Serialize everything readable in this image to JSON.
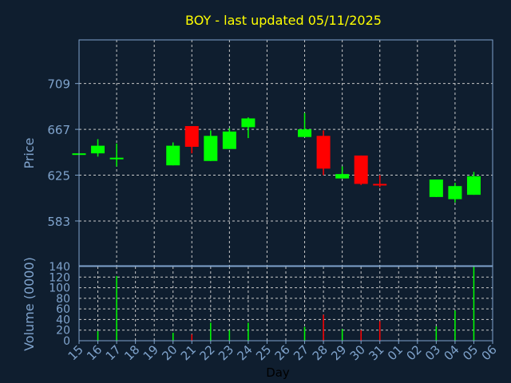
{
  "chart_data": [
    {
      "type": "candlestick",
      "title": "BOY - last updated 05/11/2025",
      "ylabel": "Price",
      "xlabel": "Day",
      "ylim": [
        542,
        749
      ],
      "y_ticks": [
        583,
        625,
        667,
        709
      ],
      "x_tick_labels": [
        "15",
        "16",
        "17",
        "18",
        "19",
        "20",
        "21",
        "22",
        "23",
        "24",
        "25",
        "26",
        "27",
        "28",
        "29",
        "30",
        "31",
        "01",
        "02",
        "03",
        "04",
        "05",
        "06"
      ],
      "grid": true,
      "colors": {
        "up": "#00ff00",
        "down": "#ff0000",
        "title": "#ffff00",
        "axis": "#7fa3cc",
        "background": "#0f1e2f"
      },
      "candles": [
        {
          "day": "15",
          "open": 645,
          "close": 645,
          "high": 645,
          "low": 645
        },
        {
          "day": "16",
          "open": 645,
          "close": 652,
          "high": 658,
          "low": 642
        },
        {
          "day": "17",
          "open": 641,
          "close": 641,
          "high": 654,
          "low": 633
        },
        {
          "day": "20",
          "open": 634,
          "close": 652,
          "high": 655,
          "low": 634
        },
        {
          "day": "21",
          "open": 670,
          "close": 651,
          "high": 670,
          "low": 645
        },
        {
          "day": "22",
          "open": 638,
          "close": 661,
          "high": 666,
          "low": 638
        },
        {
          "day": "23",
          "open": 649,
          "close": 665,
          "high": 668,
          "low": 649
        },
        {
          "day": "24",
          "open": 669,
          "close": 677,
          "high": 678,
          "low": 659
        },
        {
          "day": "27",
          "open": 660,
          "close": 667,
          "high": 682,
          "low": 660
        },
        {
          "day": "28",
          "open": 661,
          "close": 631,
          "high": 666,
          "low": 625
        },
        {
          "day": "29",
          "open": 622,
          "close": 626,
          "high": 633,
          "low": 622
        },
        {
          "day": "30",
          "open": 643,
          "close": 617,
          "high": 643,
          "low": 616
        },
        {
          "day": "31",
          "open": 617,
          "close": 616,
          "high": 625,
          "low": 614
        },
        {
          "day": "03",
          "open": 605,
          "close": 621,
          "high": 621,
          "low": 605
        },
        {
          "day": "04",
          "open": 603,
          "close": 615,
          "high": 618,
          "low": 600
        },
        {
          "day": "05",
          "open": 607,
          "close": 624,
          "high": 628,
          "low": 607
        }
      ]
    },
    {
      "type": "bar",
      "ylabel": "Volume (0000)",
      "ylim": [
        0,
        140
      ],
      "y_ticks": [
        0,
        20,
        40,
        60,
        80,
        100,
        120,
        140
      ],
      "categories": [
        "15",
        "16",
        "17",
        "20",
        "21",
        "22",
        "23",
        "24",
        "27",
        "28",
        "29",
        "30",
        "31",
        "03",
        "04",
        "05"
      ],
      "values": [
        0,
        18,
        122,
        15,
        12,
        34,
        20,
        34,
        26,
        49,
        22,
        20,
        37,
        27,
        57,
        140
      ]
    }
  ]
}
